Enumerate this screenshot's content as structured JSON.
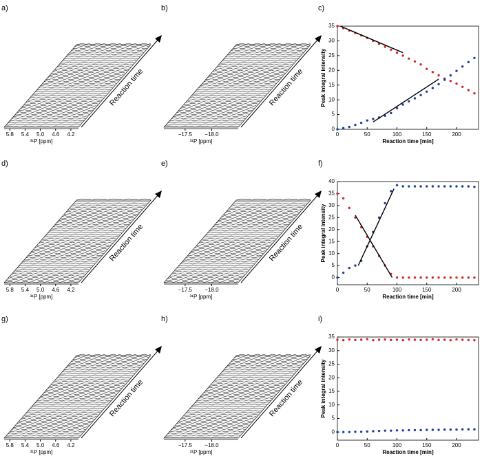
{
  "chart_data": [
    {
      "type": "waterfall",
      "label": "a)",
      "xlabel": "³¹P [ppm]",
      "ylabel": "Reaction time",
      "xlim": [
        5.95,
        4.0
      ],
      "xticks": [
        5.8,
        5.4,
        {
          "value": 5,
          "label": "5.0"
        },
        4.6,
        4.2
      ]
    },
    {
      "type": "waterfall",
      "label": "b)",
      "xlabel": "³¹P [ppm]",
      "ylabel": "Reaction time",
      "xlim": [
        -17.1,
        -18.5
      ],
      "xticks": [
        {
          "value": -17.5,
          "label": "−17.5"
        },
        {
          "value": -18,
          "label": "−18.0"
        }
      ]
    },
    {
      "type": "scatter",
      "label": "c)",
      "xlabel": "Reaction time [min]",
      "ylabel": "Peak integral intensity",
      "xlim": [
        0,
        237
      ],
      "xticks": [
        0,
        50,
        100,
        150,
        200
      ],
      "ylim": [
        0,
        35
      ],
      "yticks": [
        0,
        5,
        10,
        15,
        20,
        25,
        30,
        35
      ],
      "x": [
        0,
        10,
        20,
        30,
        40,
        50,
        60,
        70,
        80,
        90,
        100,
        110,
        120,
        130,
        140,
        150,
        160,
        170,
        180,
        190,
        200,
        210,
        220,
        230
      ],
      "series": [
        {
          "color": "#d62728",
          "values": [
            35,
            34.3,
            33.5,
            32.7,
            31.9,
            31,
            30,
            29,
            28,
            27,
            26,
            25,
            24,
            23,
            22,
            20.5,
            19.4,
            18.3,
            17.2,
            16.4,
            15.5,
            14.4,
            13.3,
            12.2
          ]
        },
        {
          "color": "#1f3f99",
          "values": [
            0,
            0.4,
            0.8,
            1.5,
            2.2,
            3,
            3.5,
            4,
            4.6,
            5.5,
            7.2,
            8.4,
            9.5,
            10.5,
            11.6,
            12.8,
            14,
            15.3,
            16.8,
            18.3,
            19.8,
            21.3,
            22.8,
            24.2
          ]
        }
      ],
      "fits": [
        {
          "color": "#000000",
          "x": [
            5,
            110
          ],
          "values": [
            35,
            26
          ]
        },
        {
          "color": "#000000",
          "x": [
            60,
            170
          ],
          "values": [
            2.5,
            17
          ]
        }
      ]
    },
    {
      "type": "waterfall",
      "label": "d)",
      "xlabel": "³¹P [ppm]",
      "ylabel": "Reaction time",
      "xlim": [
        5.95,
        4.0
      ],
      "xticks": [
        5.8,
        5.4,
        {
          "value": 5,
          "label": "5.0"
        },
        4.6,
        4.2
      ]
    },
    {
      "type": "waterfall",
      "label": "e)",
      "xlabel": "³¹P [ppm]",
      "ylabel": "Reaction time",
      "xlim": [
        -17.1,
        -18.5
      ],
      "xticks": [
        {
          "value": -17.5,
          "label": "−17.5"
        },
        {
          "value": -18,
          "label": "−18.0"
        }
      ]
    },
    {
      "type": "scatter",
      "label": "f)",
      "xlabel": "Reaction time [min]",
      "ylabel": "Peak integral intensity",
      "xlim": [
        0,
        237
      ],
      "xticks": [
        0,
        50,
        100,
        150,
        200
      ],
      "ylim": [
        -3,
        40
      ],
      "yticks": [
        0,
        5,
        10,
        15,
        20,
        25,
        30,
        35,
        40
      ],
      "x": [
        0,
        10,
        20,
        30,
        40,
        50,
        60,
        70,
        80,
        90,
        100,
        110,
        120,
        130,
        140,
        150,
        160,
        170,
        180,
        190,
        200,
        210,
        220,
        230
      ],
      "series": [
        {
          "color": "#d62728",
          "values": [
            35,
            33,
            29,
            25,
            21,
            17,
            13,
            9,
            5,
            1.5,
            0,
            0,
            0,
            0,
            0,
            0,
            0,
            0,
            0,
            0,
            0,
            0,
            0,
            0
          ]
        },
        {
          "color": "#1f3f99",
          "values": [
            0,
            2,
            4,
            5,
            7,
            13,
            19,
            25,
            31,
            36,
            38.5,
            38,
            38,
            38,
            38,
            38,
            38,
            38,
            38,
            38,
            38,
            38,
            38,
            37.8
          ]
        }
      ],
      "fits": [
        {
          "color": "#000000",
          "x": [
            35,
            95
          ],
          "values": [
            5,
            37
          ]
        },
        {
          "color": "#000000",
          "x": [
            30,
            92
          ],
          "values": [
            26,
            0
          ]
        }
      ]
    },
    {
      "type": "waterfall",
      "label": "g)",
      "xlabel": "³¹P [ppm]",
      "ylabel": "Reaction time",
      "xlim": [
        5.95,
        4.0
      ],
      "xticks": [
        5.8,
        5.4,
        {
          "value": 5,
          "label": "5.0"
        },
        4.6,
        4.2
      ]
    },
    {
      "type": "waterfall",
      "label": "h)",
      "xlabel": "³¹P [ppm]",
      "ylabel": "Reaction time",
      "xlim": [
        -17.1,
        -18.5
      ],
      "xticks": [
        {
          "value": -17.5,
          "label": "−17.5"
        },
        {
          "value": -18,
          "label": "−18.0"
        }
      ]
    },
    {
      "type": "scatter",
      "label": "i)",
      "xlabel": "Reaction time [min]",
      "ylabel": "Peak integral intensity",
      "xlim": [
        0,
        237
      ],
      "xticks": [
        0,
        50,
        100,
        150,
        200
      ],
      "ylim": [
        -3,
        35
      ],
      "yticks": [
        0,
        5,
        10,
        15,
        20,
        25,
        30,
        35
      ],
      "x": [
        0,
        10,
        20,
        30,
        40,
        50,
        60,
        70,
        80,
        90,
        100,
        110,
        120,
        130,
        140,
        150,
        160,
        170,
        180,
        190,
        200,
        210,
        220,
        230
      ],
      "series": [
        {
          "color": "#d62728",
          "values": [
            34,
            33.8,
            34.1,
            33.9,
            34,
            34.2,
            33.8,
            34,
            34.1,
            33.9,
            34,
            33.8,
            34.1,
            34,
            33.9,
            34,
            34.2,
            33.9,
            34,
            33.8,
            34.1,
            34,
            33.9,
            33.8
          ]
        },
        {
          "color": "#1f3f99",
          "values": [
            0,
            0,
            0,
            0.1,
            0.1,
            0.2,
            0.3,
            0.4,
            0.5,
            0.5,
            0.6,
            0.6,
            0.7,
            0.7,
            0.7,
            0.8,
            0.8,
            0.8,
            0.9,
            0.9,
            0.9,
            1,
            1,
            1
          ]
        }
      ]
    }
  ]
}
